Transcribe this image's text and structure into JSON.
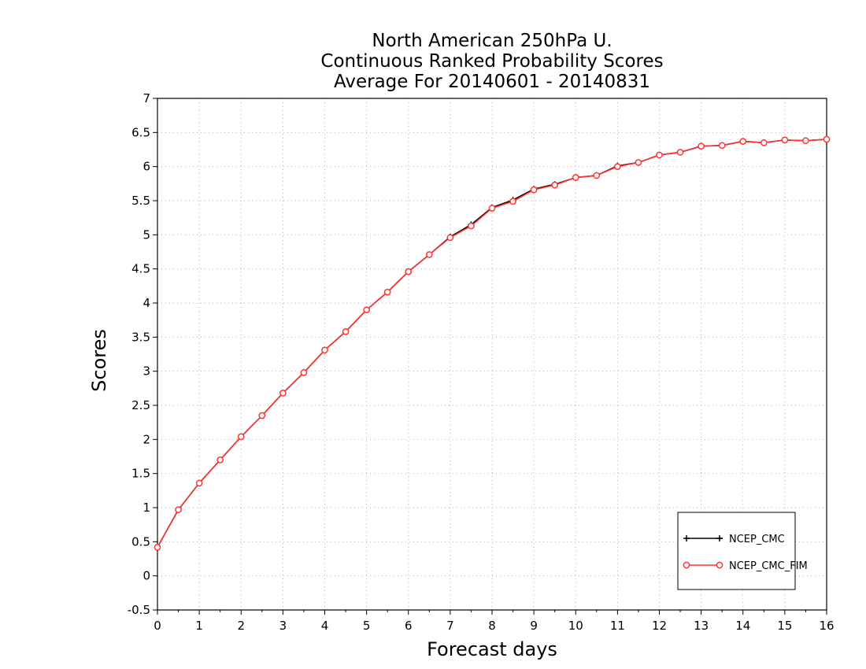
{
  "chart_data": {
    "type": "line",
    "title": [
      "North American 250hPa U.",
      "Continuous Ranked Probability Scores",
      "Average For 20140601 - 20140831"
    ],
    "xlabel": "Forecast days",
    "ylabel": "Scores",
    "xlim": [
      0,
      16
    ],
    "ylim": [
      -0.5,
      7
    ],
    "xticks": [
      "0",
      "1",
      "2",
      "3",
      "4",
      "5",
      "6",
      "7",
      "8",
      "9",
      "10",
      "11",
      "12",
      "13",
      "14",
      "15",
      "16"
    ],
    "yticks": [
      "-0.5",
      "0",
      "0.5",
      "1",
      "1.5",
      "2",
      "2.5",
      "3",
      "3.5",
      "4",
      "4.5",
      "5",
      "5.5",
      "6",
      "6.5",
      "7"
    ],
    "grid": true,
    "legend_position": "bottom-right",
    "x": [
      0,
      0.5,
      1,
      1.5,
      2,
      2.5,
      3,
      3.5,
      4,
      4.5,
      5,
      5.5,
      6,
      6.5,
      7,
      7.5,
      8,
      8.5,
      9,
      9.5,
      10,
      10.5,
      11,
      11.5,
      12,
      12.5,
      13,
      13.5,
      14,
      14.5,
      15,
      15.5,
      16
    ],
    "series": [
      {
        "name": "NCEP_CMC",
        "color": "#000000",
        "marker": "plus",
        "values": [
          0.42,
          0.97,
          1.36,
          1.7,
          2.04,
          2.35,
          2.68,
          2.98,
          3.31,
          3.58,
          3.9,
          4.16,
          4.46,
          4.71,
          4.97,
          5.15,
          5.4,
          5.51,
          5.67,
          5.74,
          5.84,
          5.87,
          6.01,
          6.06,
          6.17,
          6.21,
          6.3,
          6.31,
          6.37,
          6.35,
          6.39,
          6.38,
          6.4
        ]
      },
      {
        "name": "NCEP_CMC_FIM",
        "color": "#ff3333",
        "marker": "circle",
        "values": [
          0.42,
          0.97,
          1.36,
          1.7,
          2.04,
          2.35,
          2.68,
          2.98,
          3.31,
          3.58,
          3.9,
          4.16,
          4.46,
          4.71,
          4.96,
          5.13,
          5.39,
          5.49,
          5.66,
          5.73,
          5.84,
          5.87,
          6.0,
          6.06,
          6.17,
          6.21,
          6.3,
          6.31,
          6.37,
          6.35,
          6.39,
          6.38,
          6.4
        ]
      }
    ]
  }
}
